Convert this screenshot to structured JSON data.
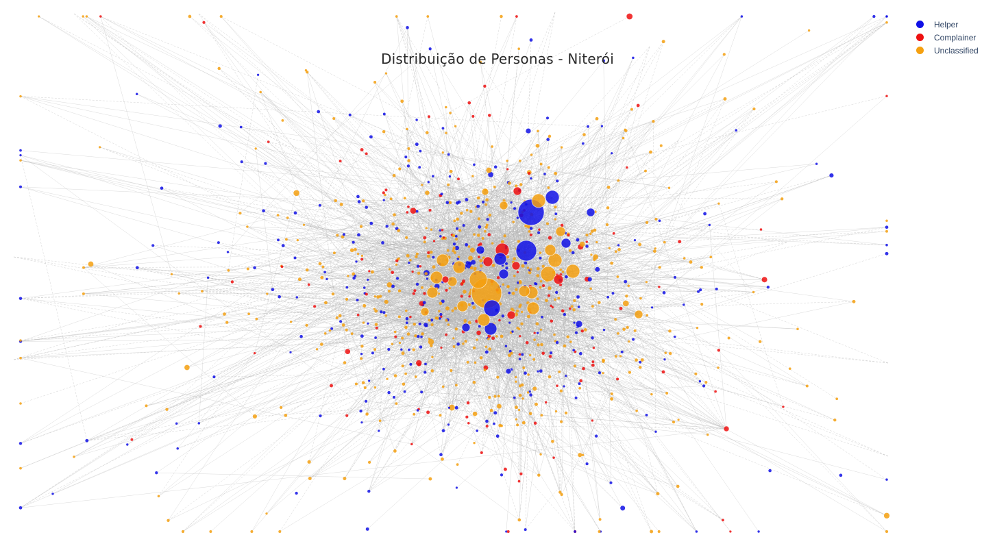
{
  "chart_data": {
    "type": "scatter",
    "chart_kind": "network-graph",
    "title": "Distribuição de Personas - Niterói",
    "xlabel": "",
    "ylabel": "",
    "axes_visible": false,
    "grid": false,
    "legend_position": "top-right",
    "edge_color": "#b4b4b4",
    "series": [
      {
        "name": "Helper",
        "color": "#1010e6"
      },
      {
        "name": "Complainer",
        "color": "#ee1111"
      },
      {
        "name": "Unclassified",
        "color": "#f5a010"
      }
    ],
    "node_counts_estimated": {
      "Helper": 320,
      "Complainer": 150,
      "Unclassified": 560
    },
    "hub_nodes": [
      {
        "series": "Helper",
        "x": 775,
        "y": 310,
        "size": 19
      },
      {
        "series": "Helper",
        "x": 768,
        "y": 366,
        "size": 15
      },
      {
        "series": "Helper",
        "x": 806,
        "y": 288,
        "size": 10
      },
      {
        "series": "Helper",
        "x": 718,
        "y": 450,
        "size": 12
      },
      {
        "series": "Helper",
        "x": 716,
        "y": 480,
        "size": 9
      },
      {
        "series": "Helper",
        "x": 826,
        "y": 355,
        "size": 7
      },
      {
        "series": "Helper",
        "x": 862,
        "y": 310,
        "size": 6
      },
      {
        "series": "Helper",
        "x": 845,
        "y": 473,
        "size": 5
      },
      {
        "series": "Helper",
        "x": 730,
        "y": 378,
        "size": 9
      },
      {
        "series": "Helper",
        "x": 735,
        "y": 400,
        "size": 7
      },
      {
        "series": "Helper",
        "x": 680,
        "y": 478,
        "size": 6
      },
      {
        "series": "Helper",
        "x": 742,
        "y": 542,
        "size": 4
      },
      {
        "series": "Helper",
        "x": 701,
        "y": 365,
        "size": 6
      },
      {
        "series": "Complainer",
        "x": 733,
        "y": 365,
        "size": 10
      },
      {
        "series": "Complainer",
        "x": 755,
        "y": 279,
        "size": 6
      },
      {
        "series": "Complainer",
        "x": 712,
        "y": 382,
        "size": 7
      },
      {
        "series": "Complainer",
        "x": 753,
        "y": 388,
        "size": 6
      },
      {
        "series": "Complainer",
        "x": 815,
        "y": 408,
        "size": 7
      },
      {
        "series": "Complainer",
        "x": 746,
        "y": 460,
        "size": 6
      },
      {
        "series": "Complainer",
        "x": 1060,
        "y": 626,
        "size": 4
      },
      {
        "series": "Complainer",
        "x": 650,
        "y": 408,
        "size": 5
      },
      {
        "series": "Unclassified",
        "x": 710,
        "y": 428,
        "size": 22
      },
      {
        "series": "Unclassified",
        "x": 698,
        "y": 408,
        "size": 13
      },
      {
        "series": "Unclassified",
        "x": 646,
        "y": 380,
        "size": 9
      },
      {
        "series": "Unclassified",
        "x": 670,
        "y": 390,
        "size": 9
      },
      {
        "series": "Unclassified",
        "x": 786,
        "y": 293,
        "size": 10
      },
      {
        "series": "Unclassified",
        "x": 836,
        "y": 396,
        "size": 10
      },
      {
        "series": "Unclassified",
        "x": 800,
        "y": 400,
        "size": 11
      },
      {
        "series": "Unclassified",
        "x": 810,
        "y": 380,
        "size": 10
      },
      {
        "series": "Unclassified",
        "x": 803,
        "y": 365,
        "size": 8
      },
      {
        "series": "Unclassified",
        "x": 776,
        "y": 427,
        "size": 9
      },
      {
        "series": "Unclassified",
        "x": 778,
        "y": 450,
        "size": 9
      },
      {
        "series": "Unclassified",
        "x": 706,
        "y": 467,
        "size": 9
      },
      {
        "series": "Unclassified",
        "x": 675,
        "y": 447,
        "size": 8
      },
      {
        "series": "Unclassified",
        "x": 637,
        "y": 405,
        "size": 9
      },
      {
        "series": "Unclassified",
        "x": 660,
        "y": 411,
        "size": 7
      },
      {
        "series": "Unclassified",
        "x": 631,
        "y": 427,
        "size": 8
      },
      {
        "series": "Unclassified",
        "x": 932,
        "y": 459,
        "size": 6
      },
      {
        "series": "Unclassified",
        "x": 818,
        "y": 338,
        "size": 7
      },
      {
        "series": "Unclassified",
        "x": 735,
        "y": 300,
        "size": 6
      },
      {
        "series": "Unclassified",
        "x": 620,
        "y": 455,
        "size": 6
      },
      {
        "series": "Unclassified",
        "x": 765,
        "y": 425,
        "size": 8
      },
      {
        "series": "Unclassified",
        "x": 708,
        "y": 280,
        "size": 5
      }
    ]
  }
}
